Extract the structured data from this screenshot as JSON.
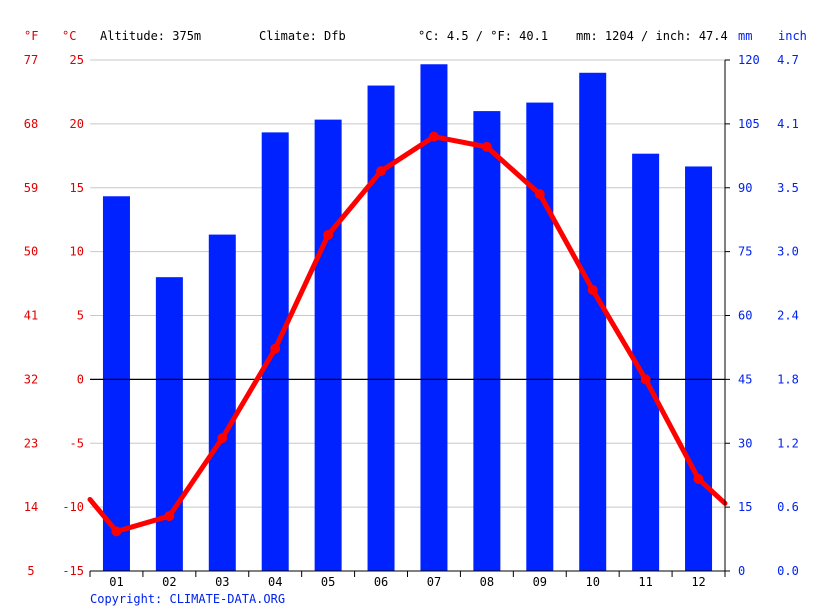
{
  "header": {
    "unit_f": "°F",
    "unit_c": "°C",
    "altitude": "Altitude: 375m",
    "climate": "Climate: Dfb",
    "avg_temp": "°C: 4.5 / °F: 40.1",
    "precip_total": "mm: 1204 / inch: 47.4",
    "unit_mm": "mm",
    "unit_inch": "inch"
  },
  "copyright": "Copyright: CLIMATE-DATA.ORG",
  "colors": {
    "temperature": "#ff0000",
    "precipitation": "#0022ff",
    "axis_left": "#e00000",
    "axis_right": "#0022ee"
  },
  "chart_data": {
    "type": "bar+line",
    "categories": [
      "01",
      "02",
      "03",
      "04",
      "05",
      "06",
      "07",
      "08",
      "09",
      "10",
      "11",
      "12"
    ],
    "series": [
      {
        "name": "precipitation",
        "unit": "mm",
        "values": [
          88,
          69,
          79,
          103,
          106,
          114,
          119,
          108,
          110,
          117,
          98,
          95
        ]
      },
      {
        "name": "temperature",
        "unit": "°C",
        "values": [
          -11.9,
          -10.7,
          -4.6,
          2.4,
          11.3,
          16.3,
          19.0,
          18.2,
          14.5,
          7.0,
          0.0,
          -7.8
        ]
      }
    ],
    "temperature_line_ends": {
      "left": -9.4,
      "right": -9.7
    },
    "axes": {
      "celsius": {
        "ylim": [
          -15,
          25
        ],
        "ticks": [
          "-15",
          "-10",
          "-5",
          "0",
          "5",
          "10",
          "15",
          "20",
          "25"
        ]
      },
      "fahrenheit": {
        "ticks": [
          "5",
          "14",
          "23",
          "32",
          "41",
          "50",
          "59",
          "68",
          "77"
        ]
      },
      "mm": {
        "ylim": [
          0,
          120
        ],
        "ticks": [
          "0",
          "15",
          "30",
          "45",
          "60",
          "75",
          "90",
          "105",
          "120"
        ]
      },
      "inch": {
        "ticks": [
          "0.0",
          "0.6",
          "1.2",
          "1.8",
          "2.4",
          "3.0",
          "3.5",
          "4.1",
          "4.7"
        ]
      }
    },
    "grid": true,
    "zero_line": true
  }
}
